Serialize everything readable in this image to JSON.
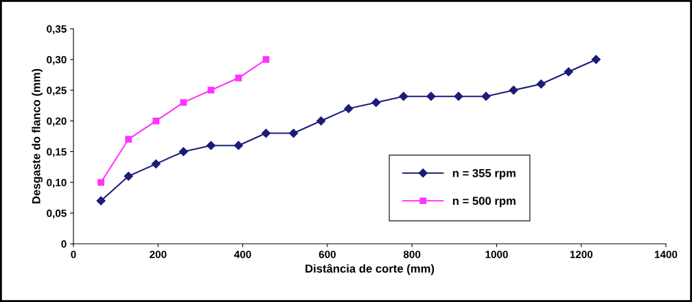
{
  "chart_data": {
    "type": "line",
    "xlabel": "Distância de corte (mm)",
    "ylabel": "Desgaste do flanco (mm)",
    "xlim": [
      0,
      1400
    ],
    "xticks": [
      0,
      200,
      400,
      600,
      800,
      1000,
      1200,
      1400
    ],
    "ylim": [
      0,
      0.35
    ],
    "yticks": [
      {
        "value": 0,
        "label": "0"
      },
      {
        "value": 0.05,
        "label": "0,05"
      },
      {
        "value": 0.1,
        "label": "0,10"
      },
      {
        "value": 0.15,
        "label": "0,15"
      },
      {
        "value": 0.2,
        "label": "0,20"
      },
      {
        "value": 0.25,
        "label": "0,25"
      },
      {
        "value": 0.3,
        "label": "0,30"
      },
      {
        "value": 0.35,
        "label": "0,35"
      }
    ],
    "grid": false,
    "legend": "bottom right",
    "series": [
      {
        "name": "n = 355 rpm",
        "color": "#1c1c78",
        "marker": "diamond",
        "x": [
          65,
          130,
          195,
          260,
          325,
          390,
          455,
          520,
          585,
          650,
          715,
          780,
          845,
          910,
          975,
          1040,
          1105,
          1170,
          1235
        ],
        "values": [
          0.07,
          0.11,
          0.13,
          0.15,
          0.16,
          0.16,
          0.18,
          0.18,
          0.2,
          0.22,
          0.23,
          0.24,
          0.24,
          0.24,
          0.24,
          0.25,
          0.26,
          0.28,
          0.3
        ]
      },
      {
        "name": "n = 500 rpm",
        "color": "#ff33ff",
        "marker": "square",
        "x": [
          65,
          130,
          195,
          260,
          325,
          390,
          455
        ],
        "values": [
          0.1,
          0.17,
          0.2,
          0.23,
          0.25,
          0.27,
          0.3
        ]
      }
    ]
  }
}
